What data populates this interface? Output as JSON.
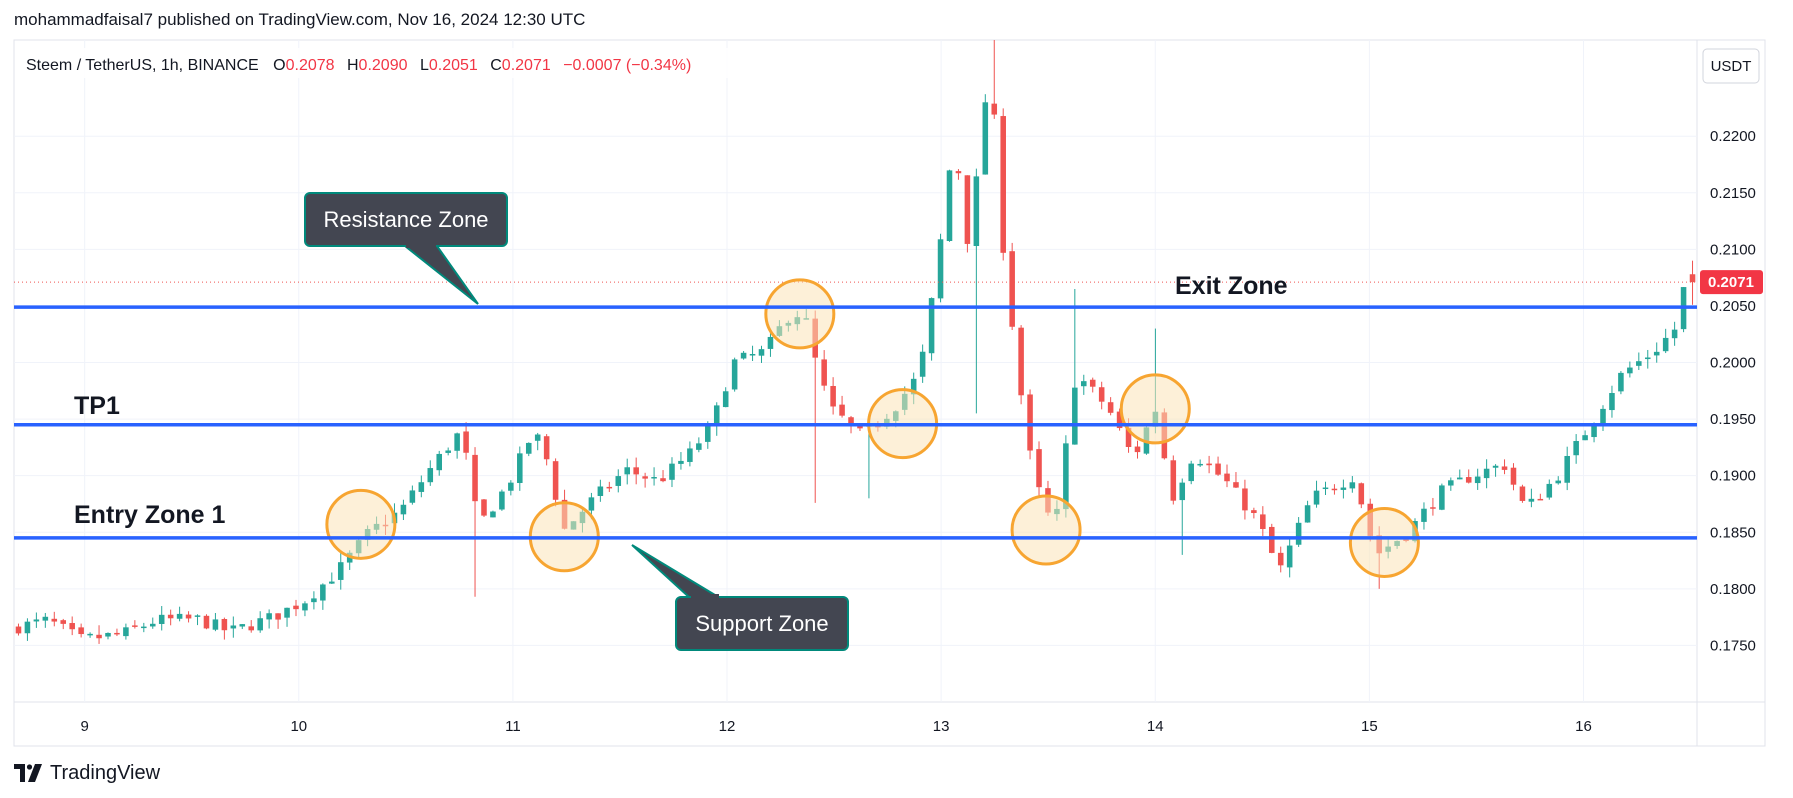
{
  "publisher": "mohammadfaisal7 published on TradingView.com, Nov 16, 2024 12:30 UTC",
  "legend": {
    "symbol": "Steem / TetherUS, 1h, BINANCE",
    "o_label": "O",
    "o_value": "0.2078",
    "h_label": "H",
    "h_value": "0.2090",
    "l_label": "L",
    "l_value": "0.2051",
    "c_label": "C",
    "c_value": "0.2071",
    "change": "−0.0007 (−0.34%)"
  },
  "currency_button": "USDT",
  "last_price_label": "0.2071",
  "brand": "TradingView",
  "colors": {
    "up": "#26a69a",
    "down": "#ef5350",
    "level_line": "#2962ff",
    "highlight_circle": "#f7a531",
    "highlight_fill": "#fbe3b8",
    "callout_bg": "#434651",
    "callout_border": "#00897b",
    "price_label_bg": "#f23645"
  },
  "chart_data": {
    "type": "candlestick",
    "title": "Steem / TetherUS, 1h, BINANCE",
    "y_ticks": [
      0.175,
      0.18,
      0.185,
      0.19,
      0.195,
      0.2,
      0.205,
      0.21,
      0.215,
      0.22
    ],
    "y_tick_labels": [
      "0.1750",
      "0.1800",
      "0.1850",
      "0.1900",
      "0.1950",
      "0.2000",
      "0.2050",
      "0.2100",
      "0.2150",
      "0.2200"
    ],
    "x_ticks": [
      "9",
      "10",
      "11",
      "12",
      "13",
      "14",
      "15",
      "16"
    ],
    "ylim": [
      0.17,
      0.2285
    ],
    "x_range_days": [
      8.67,
      16.53
    ],
    "last_price": 0.2071,
    "levels": [
      {
        "label": "Exit Zone",
        "price": 0.2049
      },
      {
        "label": "TP1",
        "price": 0.1945
      },
      {
        "label": "Entry Zone 1",
        "price": 0.1845
      }
    ],
    "callouts": [
      {
        "text": "Resistance Zone",
        "points_to": "Exit Zone level"
      },
      {
        "text": "Support Zone",
        "points_to": "Entry Zone 1 level"
      }
    ],
    "highlight_circles": [
      {
        "day": 10.29,
        "price": 0.1857
      },
      {
        "day": 11.24,
        "price": 0.1846
      },
      {
        "day": 12.34,
        "price": 0.2043
      },
      {
        "day": 12.82,
        "price": 0.1946
      },
      {
        "day": 13.49,
        "price": 0.1852
      },
      {
        "day": 14.0,
        "price": 0.1959
      },
      {
        "day": 15.07,
        "price": 0.1841
      }
    ],
    "anchors": [
      [
        8.67,
        0.1765
      ],
      [
        8.85,
        0.1772
      ],
      [
        9.0,
        0.1755
      ],
      [
        9.2,
        0.176
      ],
      [
        9.35,
        0.1772
      ],
      [
        9.55,
        0.1773
      ],
      [
        9.7,
        0.1762
      ],
      [
        9.9,
        0.1775
      ],
      [
        10.05,
        0.179
      ],
      [
        10.2,
        0.1815
      ],
      [
        10.35,
        0.185
      ],
      [
        10.5,
        0.187
      ],
      [
        10.65,
        0.191
      ],
      [
        10.78,
        0.194
      ],
      [
        10.86,
        0.1855
      ],
      [
        11.0,
        0.1893
      ],
      [
        11.12,
        0.194
      ],
      [
        11.2,
        0.1905
      ],
      [
        11.25,
        0.185
      ],
      [
        11.4,
        0.188
      ],
      [
        11.55,
        0.1905
      ],
      [
        11.7,
        0.1895
      ],
      [
        11.85,
        0.192
      ],
      [
        11.95,
        0.1945
      ],
      [
        12.05,
        0.2
      ],
      [
        12.2,
        0.201
      ],
      [
        12.3,
        0.204
      ],
      [
        12.38,
        0.2045
      ],
      [
        12.42,
        0.201
      ],
      [
        12.5,
        0.196
      ],
      [
        12.65,
        0.1935
      ],
      [
        12.8,
        0.196
      ],
      [
        12.92,
        0.199
      ],
      [
        13.0,
        0.208
      ],
      [
        13.08,
        0.22
      ],
      [
        13.15,
        0.21
      ],
      [
        13.25,
        0.227
      ],
      [
        13.3,
        0.212
      ],
      [
        13.38,
        0.199
      ],
      [
        13.45,
        0.19
      ],
      [
        13.55,
        0.185
      ],
      [
        13.65,
        0.199
      ],
      [
        13.8,
        0.196
      ],
      [
        13.92,
        0.1915
      ],
      [
        14.02,
        0.196
      ],
      [
        14.1,
        0.188
      ],
      [
        14.2,
        0.192
      ],
      [
        14.35,
        0.1895
      ],
      [
        14.5,
        0.186
      ],
      [
        14.6,
        0.1815
      ],
      [
        14.75,
        0.188
      ],
      [
        14.95,
        0.19
      ],
      [
        15.05,
        0.183
      ],
      [
        15.2,
        0.185
      ],
      [
        15.35,
        0.1885
      ],
      [
        15.5,
        0.19
      ],
      [
        15.65,
        0.191
      ],
      [
        15.75,
        0.187
      ],
      [
        15.9,
        0.19
      ],
      [
        16.0,
        0.193
      ],
      [
        16.1,
        0.196
      ],
      [
        16.2,
        0.199
      ],
      [
        16.35,
        0.201
      ],
      [
        16.45,
        0.203
      ],
      [
        16.5,
        0.2075
      ],
      [
        16.53,
        0.2071
      ]
    ],
    "spikes": [
      {
        "day": 10.84,
        "low": 0.1793
      },
      {
        "day": 12.42,
        "low": 0.1876
      },
      {
        "day": 12.67,
        "low": 0.188
      },
      {
        "day": 13.16,
        "low": 0.1955
      },
      {
        "day": 13.25,
        "high": 0.2285
      },
      {
        "day": 13.62,
        "high": 0.2065
      },
      {
        "day": 14.0,
        "high": 0.203
      },
      {
        "day": 14.12,
        "low": 0.183
      },
      {
        "day": 15.05,
        "low": 0.18
      }
    ]
  }
}
